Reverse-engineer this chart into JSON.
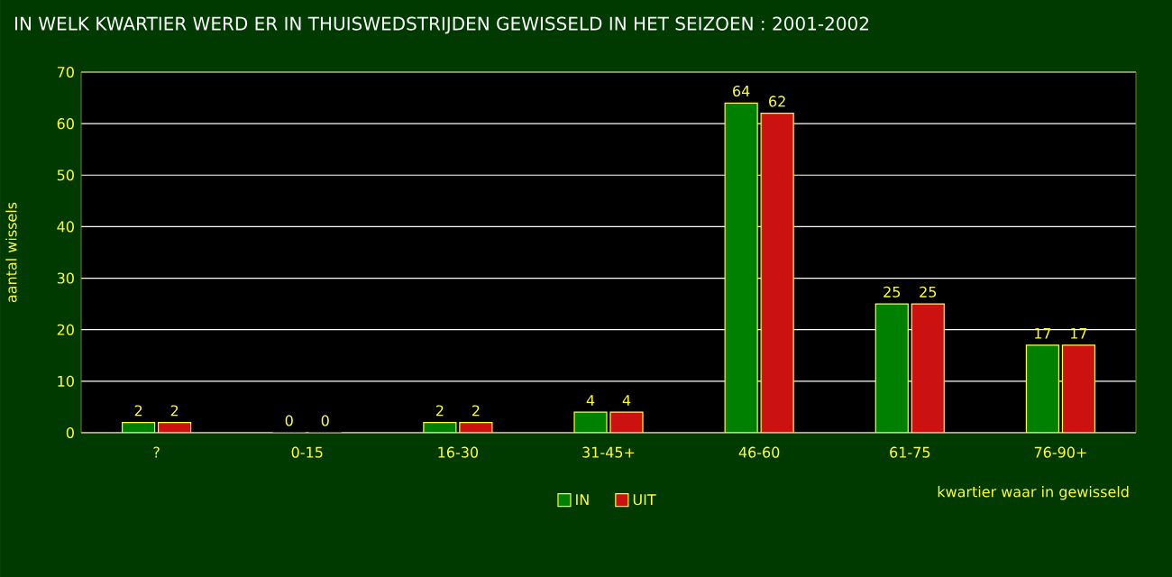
{
  "chart_data": {
    "type": "bar",
    "title": "IN WELK KWARTIER WERD ER IN THUISWEDSTRIJDEN GEWISSELD IN HET SEIZOEN : 2001-2002",
    "xlabel": "kwartier waar in gewisseld",
    "ylabel": "aantal wissels",
    "categories": [
      "?",
      "0-15",
      "16-30",
      "31-45+",
      "46-60",
      "61-75",
      "76-90+"
    ],
    "series": [
      {
        "name": "IN",
        "color": "#008000",
        "values": [
          2,
          0,
          2,
          4,
          64,
          25,
          17
        ]
      },
      {
        "name": "UIT",
        "color": "#cc1111",
        "values": [
          2,
          0,
          2,
          4,
          62,
          25,
          17
        ]
      }
    ],
    "ylim": [
      0,
      70
    ],
    "yticks": [
      0,
      10,
      20,
      30,
      40,
      50,
      60,
      70
    ],
    "grid": "y",
    "legend": "bottom",
    "data_labels": true
  }
}
